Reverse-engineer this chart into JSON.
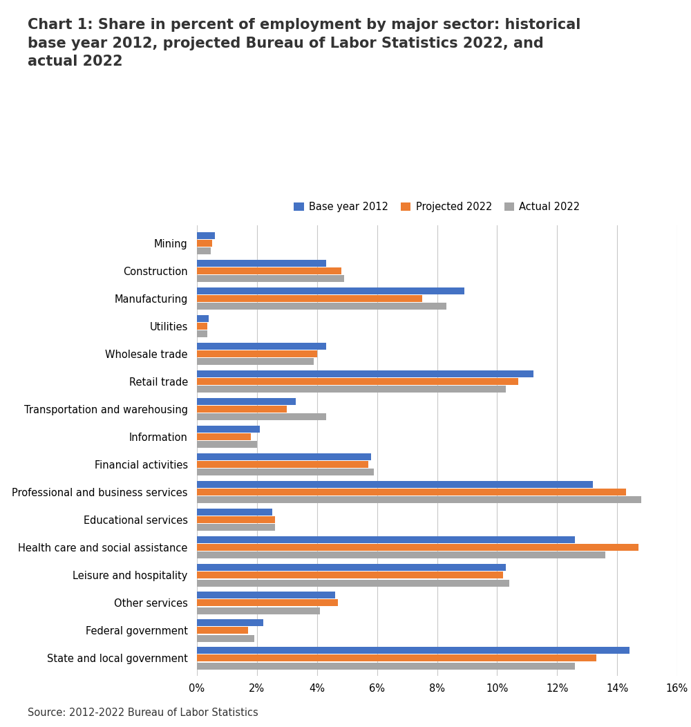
{
  "title": "Chart 1: Share in percent of employment by major sector: historical\nbase year 2012, projected Bureau of Labor Statistics 2022, and\nactual 2022",
  "source": "Source: 2012-2022 Bureau of Labor Statistics",
  "categories": [
    "Mining",
    "Construction",
    "Manufacturing",
    "Utilities",
    "Wholesale trade",
    "Retail trade",
    "Transportation and warehousing",
    "Information",
    "Financial activities",
    "Professional and business services",
    "Educational services",
    "Health care and social assistance",
    "Leisure and hospitality",
    "Other services",
    "Federal government",
    "State and local government"
  ],
  "base_2012": [
    0.6,
    4.3,
    8.9,
    0.4,
    4.3,
    11.2,
    3.3,
    2.1,
    5.8,
    13.2,
    2.5,
    12.6,
    10.3,
    4.6,
    2.2,
    14.4
  ],
  "projected_2022": [
    0.5,
    4.8,
    7.5,
    0.35,
    4.0,
    10.7,
    3.0,
    1.8,
    5.7,
    14.3,
    2.6,
    14.7,
    10.2,
    4.7,
    1.7,
    13.3
  ],
  "actual_2022": [
    0.45,
    4.9,
    8.3,
    0.35,
    3.9,
    10.3,
    4.3,
    2.0,
    5.9,
    14.8,
    2.6,
    13.6,
    10.4,
    4.1,
    1.9,
    12.6
  ],
  "color_base": "#4472C4",
  "color_projected": "#ED7D31",
  "color_actual": "#A5A5A5",
  "legend_labels": [
    "Base year 2012",
    "Projected 2022",
    "Actual 2022"
  ],
  "xlim": [
    0,
    16
  ],
  "xtick_vals": [
    0,
    2,
    4,
    6,
    8,
    10,
    12,
    14,
    16
  ],
  "xtick_labels": [
    "0%",
    "2%",
    "4%",
    "6%",
    "8%",
    "10%",
    "12%",
    "14%",
    "16%"
  ],
  "bar_height": 0.25,
  "bar_gap": 0.03,
  "title_fontsize": 15,
  "label_fontsize": 10.5,
  "tick_fontsize": 10.5,
  "source_fontsize": 10.5
}
